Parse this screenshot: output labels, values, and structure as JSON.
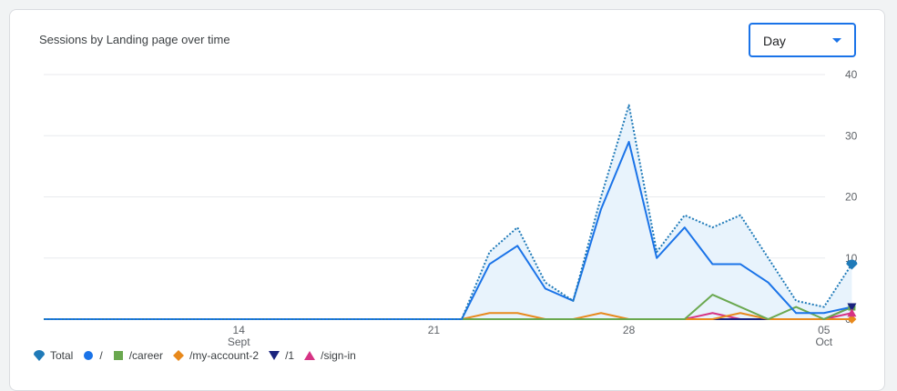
{
  "card": {
    "title": "Sessions by Landing page over time",
    "granularity": "Day"
  },
  "chart_data": {
    "type": "line",
    "x": [
      "Sep 7",
      "Sep 8",
      "Sep 9",
      "Sep 10",
      "Sep 11",
      "Sep 12",
      "Sep 13",
      "Sep 14",
      "Sep 15",
      "Sep 16",
      "Sep 17",
      "Sep 18",
      "Sep 19",
      "Sep 20",
      "Sep 21",
      "Sep 22",
      "Sep 23",
      "Sep 24",
      "Sep 25",
      "Sep 26",
      "Sep 27",
      "Sep 28",
      "Sep 29",
      "Sep 30",
      "Oct 1",
      "Oct 2",
      "Oct 3",
      "Oct 4",
      "Oct 5",
      "Oct 6"
    ],
    "x_ticks": [
      {
        "x": "Sep 14",
        "label": "14",
        "sublabel": "Sept"
      },
      {
        "x": "Sep 21",
        "label": "21",
        "sublabel": ""
      },
      {
        "x": "Sep 28",
        "label": "28",
        "sublabel": ""
      },
      {
        "x": "Oct 5",
        "label": "05",
        "sublabel": "Oct"
      }
    ],
    "y_ticks": [
      "0",
      "10",
      "20",
      "30",
      "40"
    ],
    "ylim": [
      0,
      40
    ],
    "grid": true,
    "legend_position": "bottom-left",
    "series": [
      {
        "name": "Total",
        "style": "dotted-area",
        "color": "#1f7ab8",
        "fill": "#e8f3fc",
        "marker": "pin",
        "values": [
          0,
          0,
          0,
          0,
          0,
          0,
          0,
          0,
          0,
          0,
          0,
          0,
          0,
          0,
          0,
          0,
          11,
          15,
          6,
          3,
          20,
          35,
          11,
          17,
          15,
          17,
          10,
          3,
          2,
          9
        ]
      },
      {
        "name": "/",
        "style": "line",
        "color": "#1a73e8",
        "marker": "circle",
        "values": [
          0,
          0,
          0,
          0,
          0,
          0,
          0,
          0,
          0,
          0,
          0,
          0,
          0,
          0,
          0,
          0,
          9,
          12,
          5,
          3,
          18,
          29,
          10,
          15,
          9,
          9,
          6,
          1,
          1,
          2
        ]
      },
      {
        "name": "/career",
        "style": "line",
        "color": "#6aa84f",
        "marker": "square",
        "values": [
          0,
          0,
          0,
          0,
          0,
          0,
          0,
          0,
          0,
          0,
          0,
          0,
          0,
          0,
          0,
          0,
          0,
          0,
          0,
          0,
          0,
          0,
          0,
          0,
          4,
          2,
          0,
          2,
          0,
          2
        ]
      },
      {
        "name": "/my-account-2",
        "style": "line",
        "color": "#e8891c",
        "marker": "diamond",
        "values": [
          0,
          0,
          0,
          0,
          0,
          0,
          0,
          0,
          0,
          0,
          0,
          0,
          0,
          0,
          0,
          0,
          1,
          1,
          0,
          0,
          1,
          0,
          0,
          0,
          0,
          1,
          0,
          0,
          0,
          0
        ]
      },
      {
        "name": "/1",
        "style": "line",
        "color": "#1a237e",
        "marker": "triangle-down",
        "values": [
          0,
          0,
          0,
          0,
          0,
          0,
          0,
          0,
          0,
          0,
          0,
          0,
          0,
          0,
          0,
          0,
          0,
          0,
          0,
          0,
          0,
          0,
          0,
          0,
          0,
          0,
          0,
          0,
          0,
          2
        ]
      },
      {
        "name": "/sign-in",
        "style": "line",
        "color": "#d63384",
        "marker": "triangle-up",
        "values": [
          0,
          0,
          0,
          0,
          0,
          0,
          0,
          0,
          0,
          0,
          0,
          0,
          0,
          0,
          0,
          0,
          0,
          0,
          0,
          0,
          0,
          0,
          0,
          0,
          1,
          0,
          0,
          0,
          0,
          1
        ]
      }
    ]
  }
}
